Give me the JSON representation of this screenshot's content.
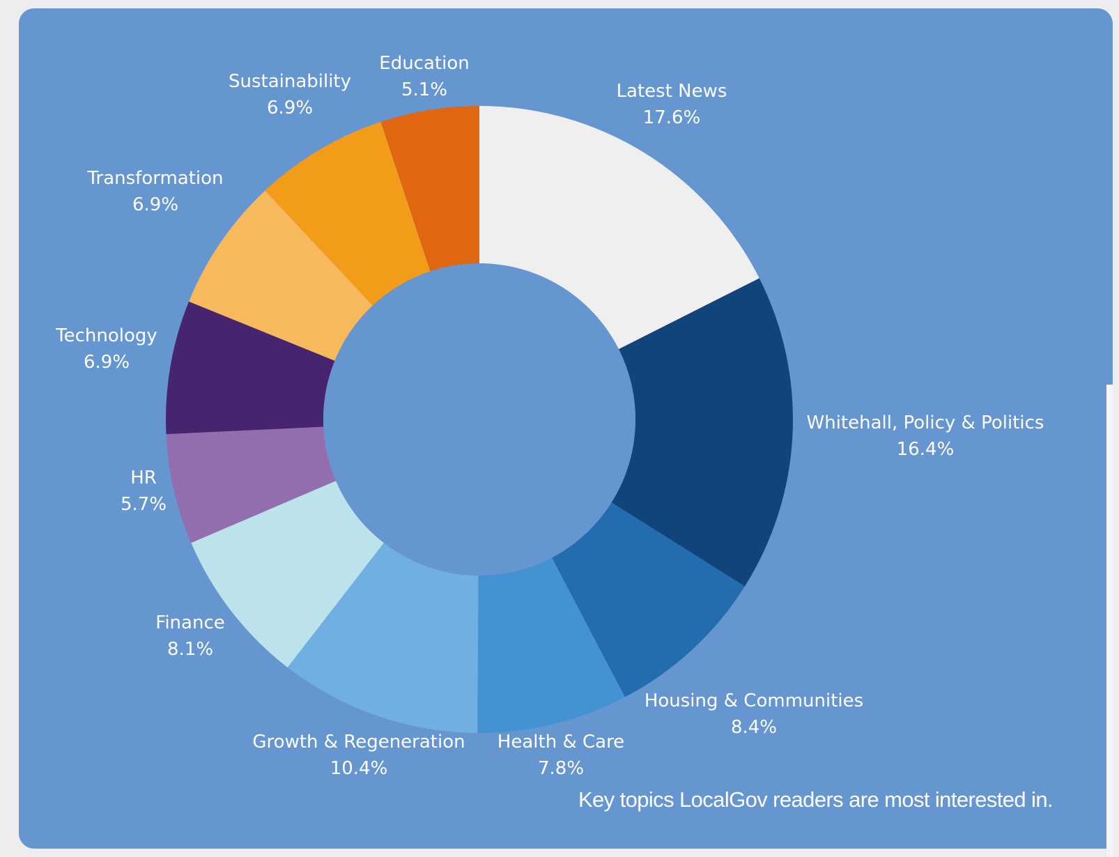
{
  "caption": "Key topics LocalGov readers are most interested in.",
  "colors": {
    "background": "#6596d0",
    "text": "#ffffff"
  },
  "chart_data": {
    "type": "pie",
    "donut": true,
    "start_angle_deg": 0,
    "direction": "clockwise",
    "slices": [
      {
        "label": "Latest News",
        "value": 17.6,
        "display": "17.6%",
        "color": "#efeff0"
      },
      {
        "label": "Whitehall, Policy & Politics",
        "value": 16.4,
        "display": "16.4%",
        "color": "#11447a"
      },
      {
        "label": "Housing & Communities",
        "value": 8.4,
        "display": "8.4%",
        "color": "#236dae"
      },
      {
        "label": "Health & Care",
        "value": 7.8,
        "display": "7.8%",
        "color": "#4592d2"
      },
      {
        "label": "Growth & Regeneration",
        "value": 10.4,
        "display": "10.4%",
        "color": "#70afe2"
      },
      {
        "label": "Finance",
        "value": 8.1,
        "display": "8.1%",
        "color": "#bce3ec"
      },
      {
        "label": "HR",
        "value": 5.7,
        "display": "5.7%",
        "color": "#936eae"
      },
      {
        "label": "Technology",
        "value": 6.9,
        "display": "6.9%",
        "color": "#47256e"
      },
      {
        "label": "Transformation",
        "value": 6.9,
        "display": "6.9%",
        "color": "#f8b95c"
      },
      {
        "label": "Sustainability",
        "value": 6.9,
        "display": "6.9%",
        "color": "#f39c19"
      },
      {
        "label": "Education",
        "value": 5.1,
        "display": "5.1%",
        "color": "#e16612"
      }
    ]
  }
}
